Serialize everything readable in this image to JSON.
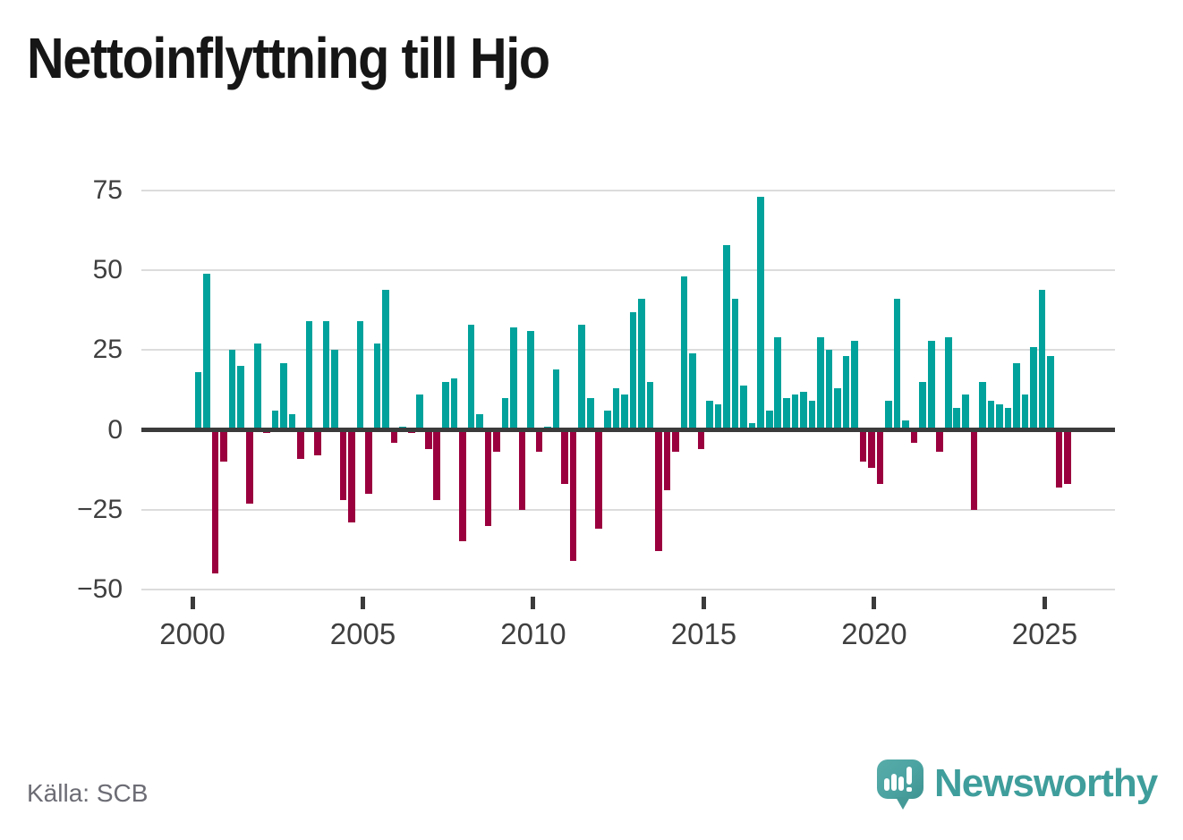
{
  "header": {
    "title": "Nettoinflyttning till Hjo"
  },
  "chart_data": {
    "type": "bar",
    "title": "Nettoinflyttning till Hjo",
    "frequency": "quarterly",
    "period_start": "2000 Q1",
    "period_end": "2025 Q3",
    "ylim": [
      -50,
      75
    ],
    "grid": true,
    "legend": "none",
    "positive_color": "#00A29B",
    "negative_color": "#9B003E",
    "y_ticks": [
      {
        "value": 75,
        "label": "75"
      },
      {
        "value": 50,
        "label": "50"
      },
      {
        "value": 25,
        "label": "25"
      },
      {
        "value": 0,
        "label": "0"
      },
      {
        "value": -25,
        "label": "−25"
      },
      {
        "value": -50,
        "label": "−50"
      }
    ],
    "x_ticks": [
      {
        "value": 2000,
        "label": "2000"
      },
      {
        "value": 2005,
        "label": "2005"
      },
      {
        "value": 2010,
        "label": "2010"
      },
      {
        "value": 2015,
        "label": "2015"
      },
      {
        "value": 2020,
        "label": "2020"
      },
      {
        "value": 2025,
        "label": "2025"
      }
    ],
    "values": [
      18,
      49,
      -45,
      -10,
      25,
      20,
      -23,
      27,
      -1,
      6,
      21,
      5,
      -9,
      34,
      -8,
      34,
      25,
      -22,
      -29,
      34,
      -20,
      27,
      44,
      -4,
      1,
      -1,
      11,
      -6,
      -22,
      15,
      16,
      -35,
      33,
      5,
      -30,
      -7,
      10,
      32,
      -25,
      31,
      -7,
      1,
      19,
      -17,
      -41,
      33,
      10,
      -31,
      6,
      13,
      11,
      37,
      41,
      15,
      -38,
      -19,
      -7,
      48,
      24,
      -6,
      9,
      8,
      58,
      41,
      14,
      2,
      73,
      6,
      29,
      10,
      11,
      12,
      9,
      29,
      25,
      13,
      23,
      28,
      -10,
      -12,
      -17,
      9,
      41,
      3,
      -4,
      15,
      28,
      -7,
      29,
      7,
      11,
      -25,
      15,
      9,
      8,
      7,
      21,
      11,
      26,
      44,
      23,
      -18,
      -17
    ]
  },
  "footer": {
    "source": "Källa: SCB",
    "brand": "Newsworthy"
  }
}
